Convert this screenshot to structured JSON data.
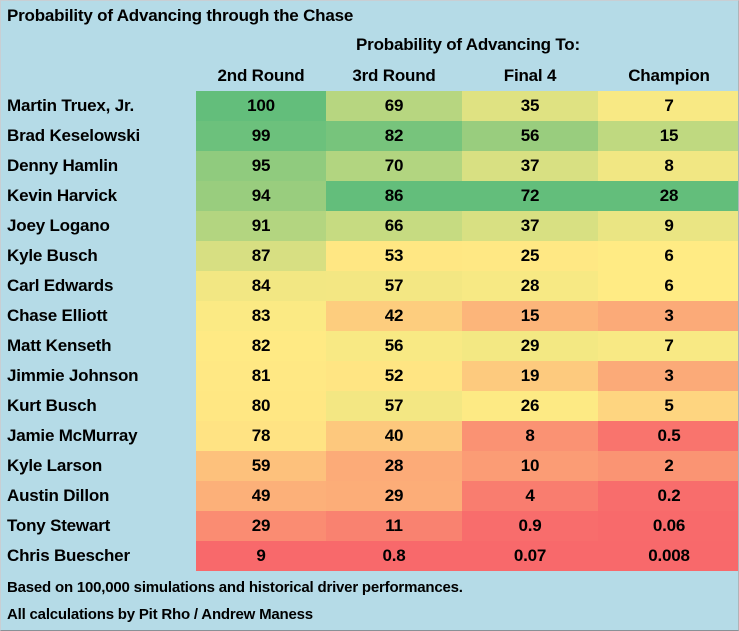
{
  "chart_data": {
    "type": "heatmap",
    "title": "Probability of Advancing through the Chase",
    "subtitle": "Probability of Advancing To:",
    "col_labels": [
      "2nd Round",
      "3rd Round",
      "Final 4",
      "Champion"
    ],
    "row_labels": [
      "Martin Truex, Jr.",
      "Brad Keselowski",
      "Denny Hamlin",
      "Kevin Harvick",
      "Joey Logano",
      "Kyle Busch",
      "Carl Edwards",
      "Chase Elliott",
      "Matt Kenseth",
      "Jimmie Johnson",
      "Kurt Busch",
      "Jamie McMurray",
      "Kyle Larson",
      "Austin Dillon",
      "Tony Stewart",
      "Chris Buescher"
    ],
    "values": [
      [
        100,
        69,
        35,
        7
      ],
      [
        99,
        82,
        56,
        15
      ],
      [
        95,
        70,
        37,
        8
      ],
      [
        94,
        86,
        72,
        28
      ],
      [
        91,
        66,
        37,
        9
      ],
      [
        87,
        53,
        25,
        6
      ],
      [
        84,
        57,
        28,
        6
      ],
      [
        83,
        42,
        15,
        3
      ],
      [
        82,
        56,
        29,
        7
      ],
      [
        81,
        52,
        19,
        3
      ],
      [
        80,
        57,
        26,
        5
      ],
      [
        78,
        40,
        8,
        0.5
      ],
      [
        59,
        28,
        10,
        2
      ],
      [
        49,
        29,
        4,
        0.2
      ],
      [
        29,
        11,
        0.9,
        0.06
      ],
      [
        9,
        0.8,
        0.07,
        0.008
      ]
    ],
    "units": "percent probability",
    "color_scale": {
      "min_color": "#F8696B",
      "mid_color": "#FFEB84",
      "max_color": "#63BE7B",
      "applied_per_column": true
    },
    "legend_position": "none",
    "grid": false
  },
  "cell_colors": [
    [
      "#63BE7B",
      "#B7D680",
      "#DFE282",
      "#F8E984"
    ],
    [
      "#6CC17C",
      "#77C47C",
      "#99CD7E",
      "#BFD980"
    ],
    [
      "#90CB7E",
      "#B2D580",
      "#D8E082",
      "#F1E783"
    ],
    [
      "#99CD7E",
      "#63BE7B",
      "#63BE7B",
      "#63BE7B"
    ],
    [
      "#B3D580",
      "#C6DB81",
      "#D8E082",
      "#EAE583"
    ],
    [
      "#D7DF82",
      "#FFE783",
      "#FFE884",
      "#FFEB84"
    ],
    [
      "#F2E783",
      "#F3E783",
      "#F7E984",
      "#FFEB84"
    ],
    [
      "#FBEA84",
      "#FDCD7E",
      "#FCB57A",
      "#FBAA78"
    ],
    [
      "#FFEA84",
      "#F8E984",
      "#F3E883",
      "#F8E984"
    ],
    [
      "#FFE884",
      "#FFE583",
      "#FDCA7E",
      "#FBAA78"
    ],
    [
      "#FFE783",
      "#F3E783",
      "#FDEA84",
      "#FED580"
    ],
    [
      "#FFE383",
      "#FDC87D",
      "#FA9273",
      "#F9746D"
    ],
    [
      "#FDC17C",
      "#FCAB78",
      "#FB9C75",
      "#FA9473"
    ],
    [
      "#FCB079",
      "#FCAD78",
      "#F97D6F",
      "#F86D6C"
    ],
    [
      "#FA8C72",
      "#F98270",
      "#F86D6C",
      "#F86A6B"
    ],
    [
      "#F8696B",
      "#F8696B",
      "#F8696B",
      "#F8696B"
    ]
  ],
  "footnotes": {
    "line1": "Based on 100,000 simulations and historical driver performances.",
    "line2": "All calculations by Pit Rho / Andrew Maness"
  },
  "colors": {
    "background": "#B5DBE7",
    "text": "#000000"
  }
}
